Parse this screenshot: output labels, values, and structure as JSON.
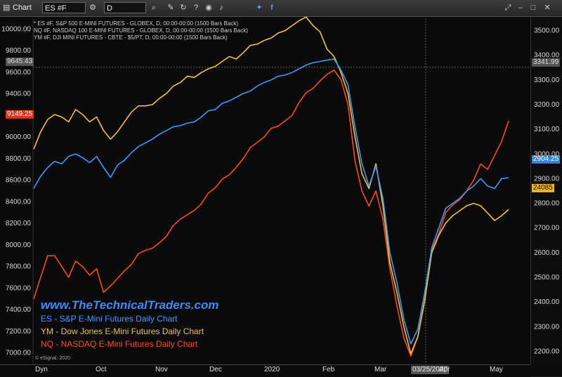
{
  "toolbar": {
    "app_label": "Chart",
    "symbol": "ES #F",
    "interval": "D",
    "icons": [
      "chart-icon",
      "gear-icon",
      "search-icon",
      "pencil-icon",
      "refresh-icon",
      "question-icon",
      "camera-icon",
      "sound-icon",
      "twitter-icon",
      "facebook-icon",
      "fullscreen-icon",
      "minimize-icon",
      "maximize-icon",
      "close-icon"
    ]
  },
  "header": {
    "line1": "* ES #F, S&P 500 E-MINI FUTURES - GLOBEX, D, 00:00-00:00 (1500 Bars Back)",
    "line2": "NQ #F, NASDAQ 100 E-MINI FUTURES - GLOBEX, D, 00:00-00:00 (1500 Bars Back)",
    "line3": "YM #F, DJI MINI FUTURES - CBTE - $5/PT, D, 00:00-00:00 (1500 Bars Back)"
  },
  "watermark": "www.TheTechnicalTraders.com",
  "legend": [
    {
      "text": "ES - S&P E-Mini Futures Daily Chart",
      "color": "#3a9bff"
    },
    {
      "text": "YM - Dow Jones E-Mini Futures Daily Chart",
      "color": "#f3c42c"
    },
    {
      "text": "NQ - NASDAQ E-Mini Futures Daily Chart",
      "color": "#ff4a17"
    }
  ],
  "copyright": "© eSignal, 2020",
  "axis_tags": {
    "left_current": "9149.25",
    "left_ref": "9645.43",
    "right_ref": "3341.99",
    "right_es": "2904.25",
    "right_ym": "24085",
    "crosshair_date": "03/25/2020"
  },
  "colors": {
    "es": "#3a9bff",
    "ym": "#f3c42c",
    "nq": "#ff4a17"
  },
  "chart_data": {
    "type": "line",
    "left_axis": {
      "ticks": [
        "10000.00",
        "9800.00",
        "9600.00",
        "9400.00",
        "9200.00",
        "9000.00",
        "8800.00",
        "8600.00",
        "8400.00",
        "8200.00",
        "8000.00",
        "7800.00",
        "7600.00",
        "7400.00",
        "7200.00",
        "7000.00"
      ],
      "ylim": [
        6900,
        10100
      ]
    },
    "right_axis": {
      "ticks": [
        "3500.00",
        "3400.00",
        "3300.00",
        "3200.00",
        "3100.00",
        "3000.00",
        "2900.00",
        "2800.00",
        "2700.00",
        "2600.00",
        "2500.00",
        "2400.00",
        "2300.00",
        "2200.00"
      ],
      "ylim": [
        2150,
        3550
      ]
    },
    "x_ticks": [
      "Dyn",
      "Oct",
      "Nov",
      "Dec",
      "2020",
      "Feb",
      "Mar",
      "Apr",
      "May"
    ],
    "series": [
      {
        "name": "ES",
        "color": "#3a9bff",
        "axis": "right",
        "values": [
          2860,
          2910,
          2945,
          2970,
          2960,
          2990,
          3000,
          2985,
          2965,
          2990,
          2945,
          2905,
          2955,
          2975,
          3005,
          3030,
          3045,
          3060,
          3080,
          3095,
          3110,
          3115,
          3125,
          3130,
          3150,
          3175,
          3180,
          3205,
          3215,
          3230,
          3245,
          3255,
          3275,
          3290,
          3300,
          3315,
          3320,
          3330,
          3345,
          3360,
          3370,
          3375,
          3380,
          3385,
          3340,
          3280,
          3110,
          2960,
          2870,
          2950,
          2820,
          2600,
          2480,
          2330,
          2230,
          2290,
          2440,
          2620,
          2700,
          2780,
          2800,
          2820,
          2850,
          2870,
          2900,
          2870,
          2860,
          2900,
          2904
        ]
      },
      {
        "name": "YM",
        "color": "#f3c42c",
        "axis": "right",
        "values": [
          3020,
          3090,
          3140,
          3160,
          3150,
          3130,
          3180,
          3160,
          3130,
          3150,
          3095,
          3060,
          3090,
          3130,
          3170,
          3195,
          3195,
          3200,
          3225,
          3245,
          3275,
          3290,
          3315,
          3310,
          3330,
          3345,
          3355,
          3375,
          3395,
          3385,
          3410,
          3440,
          3445,
          3460,
          3470,
          3490,
          3500,
          3520,
          3540,
          3555,
          3520,
          3495,
          3425,
          3395,
          3330,
          3245,
          3070,
          2920,
          2860,
          2960,
          2790,
          2560,
          2440,
          2300,
          2190,
          2260,
          2410,
          2600,
          2670,
          2720,
          2750,
          2770,
          2790,
          2800,
          2790,
          2760,
          2730,
          2750,
          2775
        ]
      },
      {
        "name": "NQ",
        "color": "#ff4a17",
        "axis": "left",
        "values": [
          7500,
          7700,
          7900,
          7900,
          7800,
          7700,
          7850,
          7800,
          7720,
          7780,
          7560,
          7620,
          7690,
          7760,
          7820,
          7920,
          7950,
          7970,
          8020,
          8080,
          8180,
          8240,
          8280,
          8320,
          8380,
          8480,
          8530,
          8610,
          8650,
          8720,
          8800,
          8900,
          8950,
          9000,
          9080,
          9100,
          9150,
          9200,
          9320,
          9410,
          9450,
          9520,
          9580,
          9620,
          9530,
          9300,
          8780,
          8500,
          8360,
          8500,
          8240,
          7780,
          7440,
          7140,
          6970,
          7150,
          7480,
          7950,
          8100,
          8300,
          8370,
          8420,
          8500,
          8600,
          8750,
          8700,
          8830,
          8960,
          9149
        ]
      }
    ]
  }
}
